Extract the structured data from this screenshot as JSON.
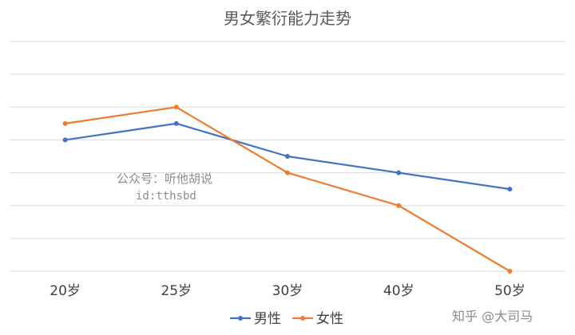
{
  "chart_data": {
    "type": "line",
    "title": "男女繁衍能力走势",
    "categories": [
      "20岁",
      "25岁",
      "30岁",
      "40岁",
      "50岁"
    ],
    "series": [
      {
        "name": "男性",
        "color": "#4472C4",
        "values": [
          80,
          90,
          70,
          60,
          50
        ]
      },
      {
        "name": "女性",
        "color": "#ED7D31",
        "values": [
          90,
          100,
          60,
          40,
          0
        ]
      }
    ],
    "ylim": [
      0,
      140
    ],
    "gridlines": true,
    "legend_position": "bottom"
  },
  "watermark": {
    "line1": "公众号：听他胡说",
    "line2": "id:tthsbd"
  },
  "credit": "知乎 @大司马"
}
